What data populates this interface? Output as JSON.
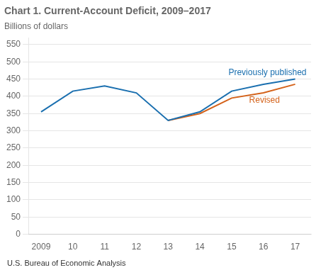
{
  "chart_data": {
    "type": "line",
    "title": "Chart 1. Current-Account Deficit, 2009–2017",
    "subtitle": "Billions of dollars",
    "footnote": "U.S. Bureau of Economic Analysis",
    "series": [
      {
        "name": "Previously published",
        "color": "#1a6faf",
        "x": [
          2009,
          2010,
          2011,
          2012,
          2013,
          2014,
          2015,
          2016,
          2017
        ],
        "values": [
          355,
          415,
          430,
          410,
          330,
          355,
          415,
          435,
          450
        ]
      },
      {
        "name": "Revised",
        "color": "#d4621a",
        "x": [
          2013,
          2014,
          2015,
          2016,
          2017
        ],
        "values": [
          330,
          350,
          395,
          410,
          435
        ]
      }
    ],
    "annotations": [
      {
        "text": "Previously published",
        "x": 2014.9,
        "y": 456
      },
      {
        "text": "Revised",
        "x": 2015.55,
        "y": 400
      }
    ],
    "xlim": [
      2008.6,
      2017.5
    ],
    "xticks": [
      2009,
      {
        "value": 2010,
        "label": "10"
      },
      {
        "value": 2011,
        "label": "11"
      },
      {
        "value": 2012,
        "label": "12"
      },
      {
        "value": 2013,
        "label": "13"
      },
      {
        "value": 2014,
        "label": "14"
      },
      {
        "value": 2015,
        "label": "15"
      },
      {
        "value": 2016,
        "label": "16"
      },
      {
        "value": 2017,
        "label": "17"
      }
    ],
    "ylim": [
      0,
      570
    ],
    "yticks": [
      0,
      50,
      100,
      150,
      200,
      250,
      300,
      350,
      400,
      450,
      500,
      550
    ],
    "grid": "y",
    "legend": false
  }
}
